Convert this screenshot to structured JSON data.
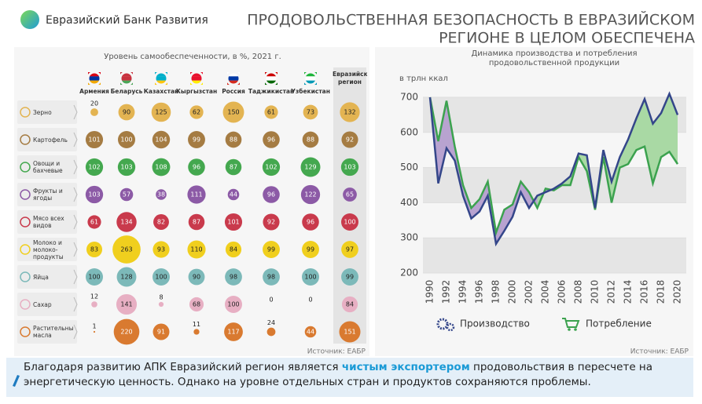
{
  "header": {
    "logo_text": "Евразийский Банк Развития",
    "title_lines": [
      "ПРОДОВОЛЬСТВЕННАЯ БЕЗОПАСНОСТЬ В ЕВРАЗИЙСКОМ",
      "РЕГИОНЕ В ЦЕЛОМ ОБЕСПЕЧЕНА"
    ]
  },
  "bubble_table": {
    "title": "Уровень самообеспеченности, в %, 2021 г.",
    "columns": [
      "Армения",
      "Беларусь",
      "Казахстан",
      "Кыргызстан",
      "Россия",
      "Таджикистан",
      "Узбекистан",
      "Евразийский регион"
    ],
    "rows": [
      {
        "name": "Зерно",
        "color": "#e3b452",
        "values": [
          20,
          90,
          125,
          62,
          150,
          61,
          73,
          132
        ]
      },
      {
        "name": "Картофель",
        "color": "#a57c43",
        "values": [
          101,
          100,
          104,
          99,
          88,
          96,
          88,
          92
        ]
      },
      {
        "name": "Овощи и бахчевые",
        "color": "#44a84f",
        "values": [
          102,
          103,
          108,
          96,
          87,
          102,
          129,
          103
        ]
      },
      {
        "name": "Фрукты и ягоды",
        "color": "#8c5aa6",
        "values": [
          103,
          57,
          38,
          111,
          44,
          96,
          122,
          65
        ]
      },
      {
        "name": "Мясо всех видов",
        "color": "#c93a4c",
        "values": [
          61,
          134,
          82,
          87,
          101,
          92,
          96,
          100
        ]
      },
      {
        "name": "Молоко и молоко-продукты",
        "color": "#f0cf1e",
        "values": [
          83,
          263,
          93,
          110,
          84,
          99,
          99,
          97
        ]
      },
      {
        "name": "Яйца",
        "color": "#7cb9b9",
        "values": [
          100,
          128,
          100,
          90,
          98,
          98,
          100,
          99
        ]
      },
      {
        "name": "Сахар",
        "color": "#e7afc3",
        "values": [
          12,
          141,
          8,
          68,
          100,
          0,
          0,
          84
        ]
      },
      {
        "name": "Растительные масла",
        "color": "#d97a30",
        "values": [
          1,
          220,
          91,
          11,
          117,
          24,
          44,
          151
        ]
      }
    ],
    "source": "Источник: ЕАБР"
  },
  "chart_data": {
    "type": "line",
    "title": "Динамика производства и потребления продовольственной продукции",
    "y_label": "в трлн ккал",
    "x": [
      1990,
      1991,
      1992,
      1993,
      1994,
      1995,
      1996,
      1997,
      1998,
      1999,
      2000,
      2001,
      2002,
      2003,
      2004,
      2005,
      2006,
      2007,
      2008,
      2009,
      2010,
      2011,
      2012,
      2013,
      2014,
      2015,
      2016,
      2017,
      2018,
      2019,
      2020
    ],
    "series": [
      {
        "name": "Производство",
        "color": "#34468a",
        "values": [
          700,
          455,
          555,
          520,
          420,
          355,
          375,
          420,
          283,
          320,
          360,
          430,
          385,
          420,
          430,
          440,
          455,
          475,
          540,
          535,
          385,
          550,
          460,
          530,
          580,
          640,
          695,
          625,
          655,
          710,
          650
        ]
      },
      {
        "name": "Потребление",
        "color": "#3ca24f",
        "values": [
          700,
          575,
          690,
          560,
          450,
          385,
          410,
          460,
          315,
          380,
          395,
          460,
          430,
          385,
          440,
          435,
          450,
          450,
          530,
          490,
          380,
          530,
          400,
          500,
          510,
          550,
          560,
          455,
          530,
          545,
          510
        ]
      }
    ],
    "xlim": [
      1990,
      2020
    ],
    "xticks": [
      1990,
      1992,
      1994,
      1996,
      1998,
      2000,
      2002,
      2004,
      2006,
      2008,
      2010,
      2012,
      2014,
      2016,
      2018,
      2020
    ],
    "ylim": [
      200,
      750
    ],
    "yticks": [
      200,
      300,
      400,
      500,
      600,
      700
    ],
    "legend": "bottom",
    "source": "Источник: ЕАБР"
  },
  "footer": {
    "text_before": "Благодаря развитию АПК Евразийский регион является ",
    "highlight": "чистым экспортером",
    "text_after": " продовольствия в пересчете на энергетическую ценность. Однако на уровне отдельных стран и продуктов сохраняются проблемы."
  }
}
